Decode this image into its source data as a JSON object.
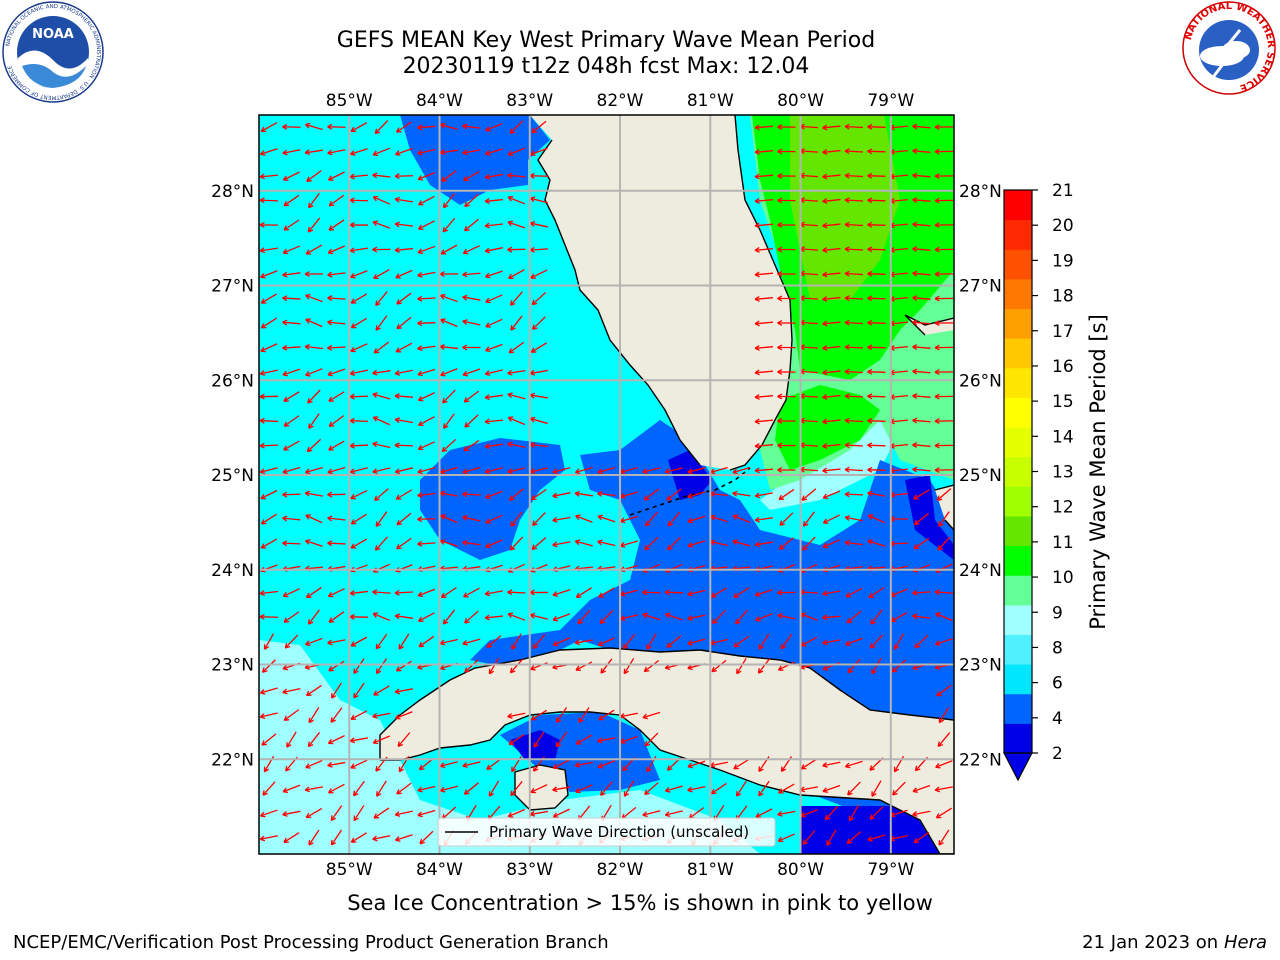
{
  "title": {
    "line1": "GEFS MEAN Key West Primary Wave Mean Period",
    "line2": "20230119 t12z 048h fcst   Max: 12.04"
  },
  "logos": {
    "noaa_text": "NOAA",
    "noaa_ring": "NATIONAL OCEANIC AND ATMOSPHERIC ADMINISTRATION · U.S. DEPARTMENT OF COMMERCE",
    "nws_ring": "NATIONAL WEATHER SERVICE"
  },
  "axes": {
    "lon_ticks": [
      "85°W",
      "84°W",
      "83°W",
      "82°W",
      "81°W",
      "80°W",
      "79°W"
    ],
    "lat_ticks": [
      "28°N",
      "27°N",
      "26°N",
      "25°N",
      "24°N",
      "23°N",
      "22°N"
    ],
    "lon_range": [
      -86.0,
      -78.3
    ],
    "lat_range": [
      21.0,
      28.8
    ]
  },
  "legend": {
    "label": "Primary Wave Direction (unscaled)"
  },
  "colorbar": {
    "label": "Primary Wave Mean Period [s]",
    "ticks": [
      "21",
      "20",
      "19",
      "18",
      "17",
      "16",
      "15",
      "14",
      "13",
      "12",
      "11",
      "10",
      "9",
      "8",
      "6",
      "4",
      "2"
    ],
    "colors": [
      "#0000e6",
      "#0064ff",
      "#00e6ff",
      "#50f0ff",
      "#a0ffff",
      "#64ff96",
      "#00ff00",
      "#64e600",
      "#a0ff00",
      "#c8ff00",
      "#e6ff00",
      "#ffff00",
      "#ffe600",
      "#ffc800",
      "#ffa000",
      "#ff7800",
      "#ff5000",
      "#ff2800",
      "#ff0000"
    ]
  },
  "footer": {
    "subtitle": "Sea Ice Concentration > 15% is shown in pink to yellow",
    "credit_left": "NCEP/EMC/Verification Post Processing Product Generation Branch",
    "credit_date": "21 Jan 2023 on ",
    "credit_host": "Hera"
  },
  "palette": {
    "land": "#eeecde",
    "ocean_light": "#00ffff",
    "ocean_mid": "#0064ff",
    "ocean_deep": "#0000e6",
    "ocean_pale": "#a0ffff",
    "green_light": "#64ff96",
    "green": "#00ff00",
    "green_lime": "#64e600",
    "arrow": "#ff0000",
    "grid": "#b4b4b4"
  }
}
